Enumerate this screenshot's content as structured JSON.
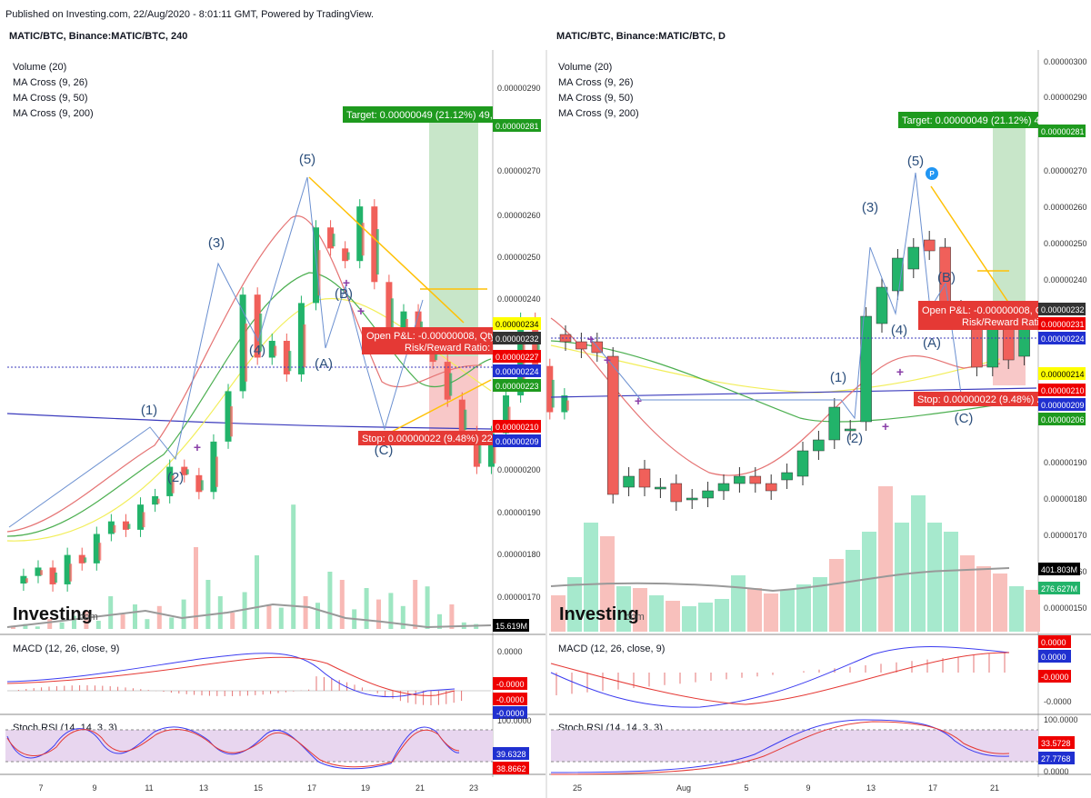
{
  "header": "Published on Investing.com, 22/Aug/2020 - 8:01:11 GMT, Powered by TradingView.",
  "colors": {
    "up": "#26a69a",
    "down": "#ef5350",
    "upCandle": "#22b36a",
    "downCandle": "#f0605a"
  },
  "panels": [
    {
      "title": "MATIC/BTC, Binance:MATIC/BTC, 240",
      "indicators": [
        "Volume (20)",
        "MA Cross (9, 26)",
        "MA Cross (9, 50)",
        "MA Cross (9, 200)"
      ],
      "macd_label": "MACD (12, 26, close, 9)",
      "stoch_label": "Stoch RSI (14, 14, 3, 3)",
      "watermark": "Investing",
      "watermark_suffix": ".com",
      "target_label": "Target: 0.00000049 (21.12%) 49,",
      "open_label": "Open P&L: -0.00000008, Qty:",
      "rr_label": "Risk/Reward Ratio: 2",
      "stop_label": "Stop: 0.00000022 (9.48%) 22,",
      "price_ticks": [
        "0.00000290",
        "0.00000270",
        "0.00000260",
        "0.00000250",
        "0.00000240",
        "0.00000200",
        "0.00000190",
        "0.00000180",
        "0.00000170"
      ],
      "price_tags": [
        {
          "text": "0.00000281",
          "bg": "#1e9a1e",
          "fg": "#fff"
        },
        {
          "text": "0.00000234",
          "bg": "#ffff00",
          "fg": "#000"
        },
        {
          "text": "0.00000232",
          "bg": "#333",
          "fg": "#fff"
        },
        {
          "text": "0.00000227",
          "bg": "#e00",
          "fg": "#fff"
        },
        {
          "text": "0.00000224",
          "bg": "#2030d0",
          "fg": "#fff"
        },
        {
          "text": "0.00000223",
          "bg": "#1e9a1e",
          "fg": "#fff"
        },
        {
          "text": "0.00000210",
          "bg": "#e00",
          "fg": "#fff"
        },
        {
          "text": "0.00000209",
          "bg": "#2030d0",
          "fg": "#fff"
        }
      ],
      "volume_tag": "15.619M",
      "macd_ticks": [
        "0.0000"
      ],
      "macd_tags": [
        {
          "text": "-0.0000",
          "bg": "#e00"
        },
        {
          "text": "-0.0000",
          "bg": "#e00"
        },
        {
          "text": "-0.0000",
          "bg": "#2030d0"
        }
      ],
      "stoch_ticks": [
        "100.0000"
      ],
      "stoch_tags": [
        {
          "text": "39.6328",
          "bg": "#2030d0"
        },
        {
          "text": "38.8662",
          "bg": "#e00"
        }
      ],
      "x_ticks": [
        "7",
        "9",
        "11",
        "13",
        "15",
        "17",
        "19",
        "21",
        "23"
      ],
      "waves": [
        "(1)",
        "(2)",
        "(3)",
        "(4)",
        "(5)",
        "(A)",
        "(B)",
        "(C)"
      ]
    },
    {
      "title": "MATIC/BTC, Binance:MATIC/BTC, D",
      "indicators": [
        "Volume (20)",
        "MA Cross (9, 26)",
        "MA Cross (9, 50)",
        "MA Cross (9, 200)"
      ],
      "macd_label": "MACD (12, 26, close, 9)",
      "stoch_label": "Stoch RSI (14, 14, 3, 3)",
      "watermark": "Investing",
      "watermark_suffix": ".com",
      "target_label": "Target: 0.00000049 (21.12%) 4!",
      "open_label": "Open P&L: -0.00000008, Qt",
      "rr_label": "Risk/Reward Ratio",
      "stop_label": "Stop: 0.00000022 (9.48%) 2",
      "price_ticks": [
        "0.00000300",
        "0.00000290",
        "0.00000270",
        "0.00000260",
        "0.00000250",
        "0.00000240",
        "0.00000190",
        "0.00000180",
        "0.00000170",
        "0.00000160",
        "0.00000150"
      ],
      "price_tags": [
        {
          "text": "0.00000281",
          "bg": "#1e9a1e",
          "fg": "#fff"
        },
        {
          "text": "0.00000232",
          "bg": "#333",
          "fg": "#fff"
        },
        {
          "text": "0.00000231",
          "bg": "#e00",
          "fg": "#fff"
        },
        {
          "text": "0.00000224",
          "bg": "#2030d0",
          "fg": "#fff"
        },
        {
          "text": "0.00000214",
          "bg": "#ffff00",
          "fg": "#000"
        },
        {
          "text": "0.00000210",
          "bg": "#e00",
          "fg": "#fff"
        },
        {
          "text": "0.00000209",
          "bg": "#2030d0",
          "fg": "#fff"
        },
        {
          "text": "0.00000206",
          "bg": "#1e9a1e",
          "fg": "#fff"
        }
      ],
      "volume_tags": [
        {
          "text": "401.803M",
          "bg": "#000"
        },
        {
          "text": "276.627M",
          "bg": "#22b36a"
        }
      ],
      "macd_ticks": [
        "-0.0000"
      ],
      "macd_tags": [
        {
          "text": "0.0000",
          "bg": "#e00"
        },
        {
          "text": "0.0000",
          "bg": "#2030d0"
        },
        {
          "text": "-0.0000",
          "bg": "#e00"
        }
      ],
      "stoch_ticks": [
        "100.0000",
        "0.0000"
      ],
      "stoch_tags": [
        {
          "text": "33.5728",
          "bg": "#e00"
        },
        {
          "text": "27.7768",
          "bg": "#2030d0"
        }
      ],
      "x_ticks": [
        "25",
        "Aug",
        "5",
        "9",
        "13",
        "17",
        "21"
      ],
      "waves": [
        "(1)",
        "(2)",
        "(3)",
        "(4)",
        "(5)",
        "(A)",
        "(B)",
        "(C)"
      ]
    }
  ],
  "chart_data": [
    {
      "type": "candlestick",
      "title": "MATIC/BTC, Binance:MATIC/BTC, 240",
      "ylim": [
        1.65e-06,
        2.95e-06
      ],
      "close_series_approx": [
        1.8e-06,
        1.82e-06,
        1.78e-06,
        1.85e-06,
        1.83e-06,
        1.9e-06,
        1.93e-06,
        1.91e-06,
        1.97e-06,
        1.99e-06,
        2.06e-06,
        2.04e-06,
        2e-06,
        2.12e-06,
        2.24e-06,
        2.47e-06,
        2.32e-06,
        2.36e-06,
        2.28e-06,
        2.45e-06,
        2.63e-06,
        2.58e-06,
        2.55e-06,
        2.68e-06,
        2.5e-06,
        2.37e-06,
        2.43e-06,
        2.35e-06,
        2.31e-06,
        2.22e-06,
        2.14e-06,
        2.06e-06,
        2.14e-06,
        2.23e-06,
        2.41e-06,
        2.3e-06,
        2.19e-06,
        2.23e-06
      ]
    },
    {
      "type": "candlestick",
      "title": "MATIC/BTC, Binance:MATIC/BTC, D",
      "ylim": [
        1.48e-06,
        3.02e-06
      ],
      "candles": [
        {
          "o": 2.27e-06,
          "c": 2.25e-06
        },
        {
          "o": 2.25e-06,
          "c": 2.23e-06
        },
        {
          "o": 2.25e-06,
          "c": 2.22e-06
        },
        {
          "o": 2.21e-06,
          "c": 1.83e-06
        },
        {
          "o": 1.85e-06,
          "c": 1.88e-06
        },
        {
          "o": 1.9e-06,
          "c": 1.85e-06
        },
        {
          "o": 1.85e-06,
          "c": 1.85e-06
        },
        {
          "o": 1.86e-06,
          "c": 1.81e-06
        },
        {
          "o": 1.82e-06,
          "c": 1.82e-06
        },
        {
          "o": 1.82e-06,
          "c": 1.84e-06
        },
        {
          "o": 1.84e-06,
          "c": 1.86e-06
        },
        {
          "o": 1.86e-06,
          "c": 1.88e-06
        },
        {
          "o": 1.88e-06,
          "c": 1.86e-06
        },
        {
          "o": 1.86e-06,
          "c": 1.84e-06
        },
        {
          "o": 1.87e-06,
          "c": 1.89e-06
        },
        {
          "o": 1.88e-06,
          "c": 1.95e-06
        },
        {
          "o": 1.95e-06,
          "c": 1.98e-06
        },
        {
          "o": 1.98e-06,
          "c": 2.07e-06
        },
        {
          "o": 2.01e-06,
          "c": 2.01e-06
        },
        {
          "o": 2.03e-06,
          "c": 2.32e-06
        },
        {
          "o": 2.3e-06,
          "c": 2.4e-06
        },
        {
          "o": 2.39e-06,
          "c": 2.48e-06
        },
        {
          "o": 2.45e-06,
          "c": 2.51e-06
        },
        {
          "o": 2.53e-06,
          "c": 2.5e-06
        },
        {
          "o": 2.51e-06,
          "c": 2.35e-06
        },
        {
          "o": 2.34e-06,
          "c": 2.31e-06
        },
        {
          "o": 2.32e-06,
          "c": 2.18e-06
        },
        {
          "o": 2.18e-06,
          "c": 2.31e-06
        },
        {
          "o": 2.32e-06,
          "c": 2.2e-06
        },
        {
          "o": 2.21e-06,
          "c": 2.31e-06
        }
      ]
    }
  ]
}
